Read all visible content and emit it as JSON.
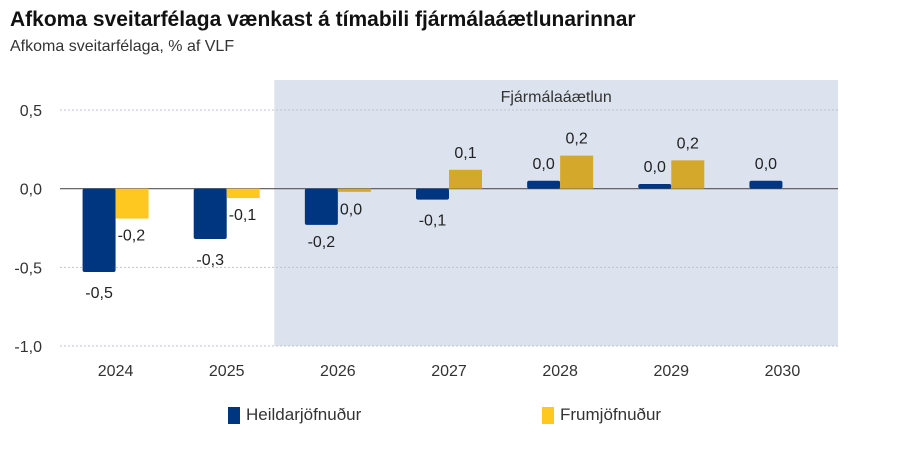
{
  "chart_data": {
    "type": "bar",
    "title": "Afkoma sveitarfélaga vænkast á tímabili fjármálaáætlunarinnar",
    "subtitle": "Afkoma sveitarfélaga, % af VLF",
    "categories": [
      "2024",
      "2025",
      "2026",
      "2027",
      "2028",
      "2029",
      "2030"
    ],
    "series": [
      {
        "name": "Heildarjöfnuður",
        "values": [
          -0.53,
          -0.32,
          -0.23,
          -0.07,
          0.05,
          0.03,
          0.05
        ],
        "labels": [
          "-0,5",
          "-0,3",
          "-0,2",
          "-0,1",
          "0,0",
          "0,0",
          "0,0"
        ],
        "color": "#003580"
      },
      {
        "name": "Frumjöfnuður",
        "values": [
          -0.19,
          -0.06,
          -0.02,
          0.12,
          0.21,
          0.18,
          null
        ],
        "labels": [
          "-0,2",
          "-0,1",
          "0,0",
          "0,1",
          "0,2",
          "0,2",
          ""
        ],
        "color": "#FFC820",
        "color_forecast": "#D4A82A"
      }
    ],
    "ylim": [
      -1.0,
      0.5
    ],
    "yticks": [
      0.5,
      0.0,
      -0.5,
      -1.0
    ],
    "ytick_labels": [
      "0,5",
      "0,0",
      "-0,5",
      "-1,0"
    ],
    "grid": true,
    "shaded_region": {
      "label": "Fjármálaáætlun",
      "from_category": "2026",
      "to_category": "2030",
      "color": "#DCE3EE"
    },
    "legend_position": "bottom"
  }
}
